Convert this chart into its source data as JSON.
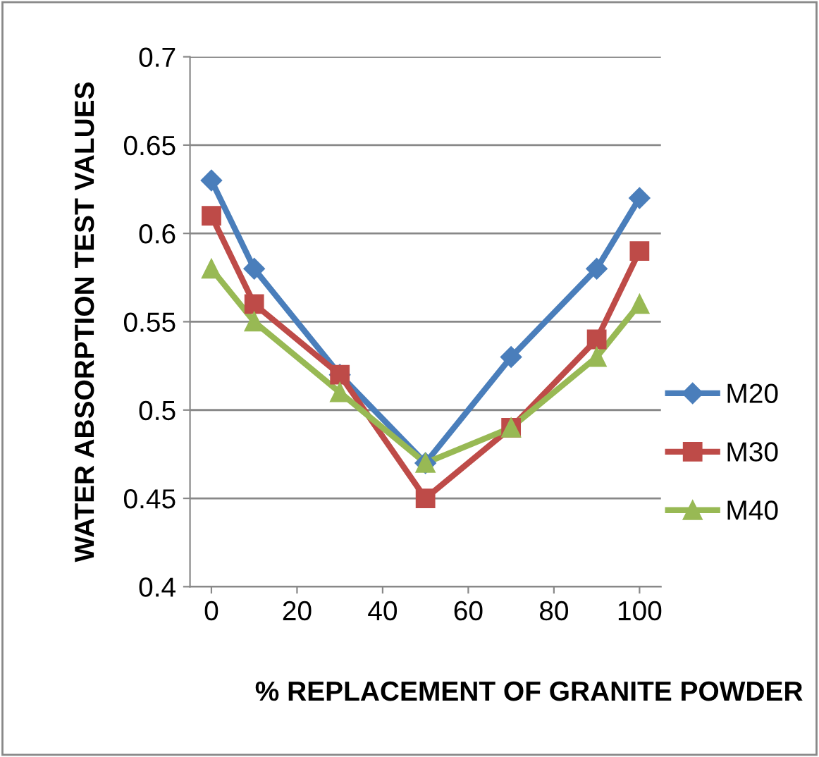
{
  "chart_data": {
    "type": "line",
    "xlabel": "% REPLACEMENT OF GRANITE POWDER",
    "ylabel": "WATER ABSORPTION TEST VALUES",
    "x": [
      0,
      10,
      30,
      50,
      70,
      90,
      100
    ],
    "series": [
      {
        "name": "M20",
        "color": "#4a7ebb",
        "marker": "diamond",
        "values": [
          0.63,
          0.58,
          0.52,
          0.47,
          0.53,
          0.58,
          0.62
        ]
      },
      {
        "name": "M30",
        "color": "#be4b48",
        "marker": "square",
        "values": [
          0.61,
          0.56,
          0.52,
          0.45,
          0.49,
          0.54,
          0.59
        ]
      },
      {
        "name": "M40",
        "color": "#98b954",
        "marker": "triangle",
        "values": [
          0.58,
          0.55,
          0.51,
          0.47,
          0.49,
          0.53,
          0.56
        ]
      }
    ],
    "xlim": [
      -5,
      105
    ],
    "xticks": [
      0,
      20,
      40,
      60,
      80,
      100
    ],
    "ylim": [
      0.4,
      0.7
    ],
    "yticks": [
      0.4,
      0.45,
      0.5,
      0.55,
      0.6,
      0.65,
      0.7
    ],
    "grid": "y",
    "legend": "right",
    "line_style": "solid"
  }
}
